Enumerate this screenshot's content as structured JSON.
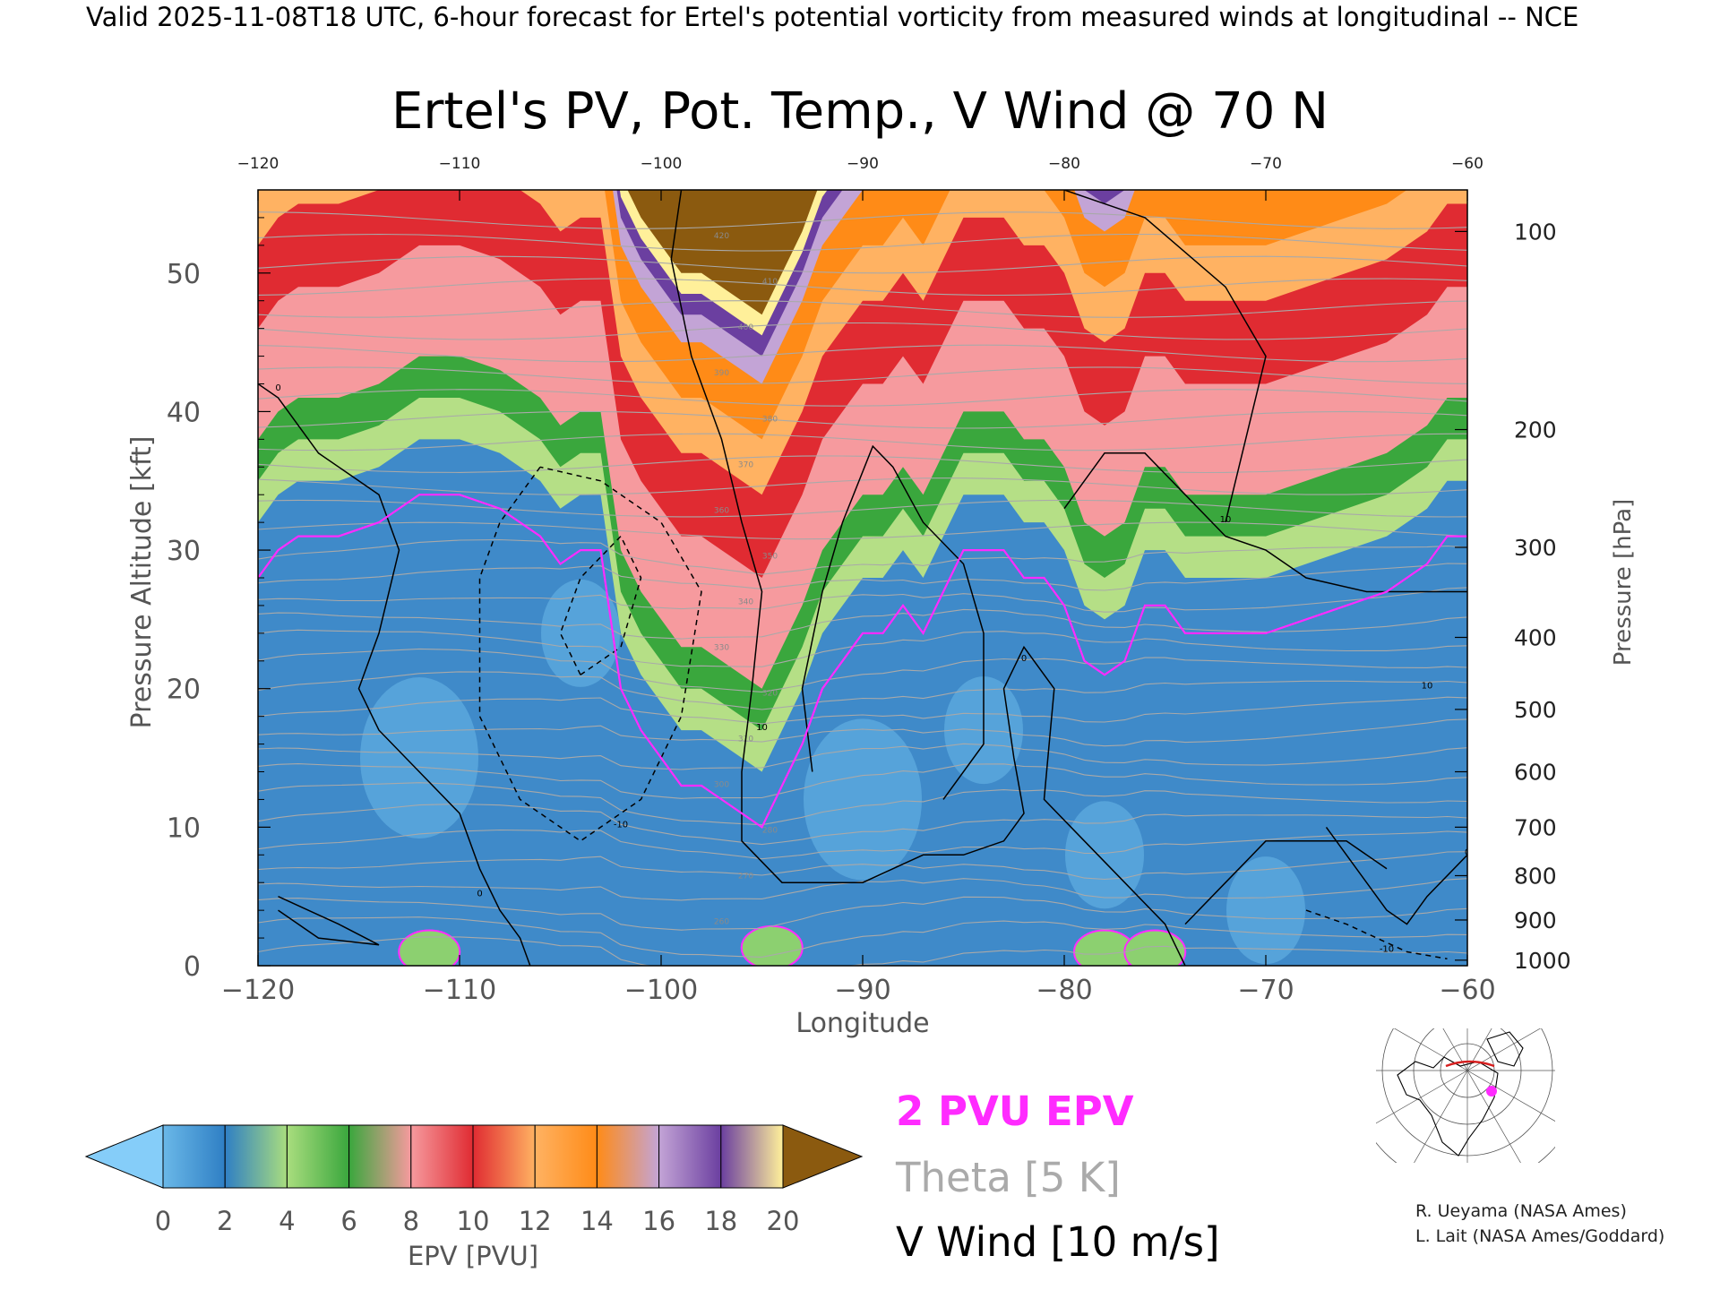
{
  "header": {
    "valid_line": "Valid 2025-11-08T18 UTC, 6-hour forecast for Ertel's potential vorticity from measured winds at longitudinal -- NCE"
  },
  "chart_data": {
    "type": "heatmap",
    "title": "Ertel's PV, Pot. Temp., V Wind @ 70 N",
    "xlabel": "Longitude",
    "ylabel": "Pressure Altitude [kft]",
    "ylabel_right": "Pressure [hPa]",
    "x_range": [
      -120,
      -60
    ],
    "y_range": [
      0,
      56
    ],
    "x_ticks": [
      -120,
      -110,
      -100,
      -90,
      -80,
      -70,
      -60
    ],
    "x_tick_labels": [
      "−120",
      "−110",
      "−100",
      "−90",
      "−80",
      "−70",
      "−60"
    ],
    "y_ticks": [
      0,
      10,
      20,
      30,
      40,
      50
    ],
    "pressure_ticks": [
      {
        "label": "100",
        "kft": 53.0
      },
      {
        "label": "200",
        "kft": 38.7
      },
      {
        "label": "300",
        "kft": 30.2
      },
      {
        "label": "400",
        "kft": 23.7
      },
      {
        "label": "500",
        "kft": 18.5
      },
      {
        "label": "600",
        "kft": 14.0
      },
      {
        "label": "700",
        "kft": 10.0
      },
      {
        "label": "800",
        "kft": 6.5
      },
      {
        "label": "900",
        "kft": 3.3
      },
      {
        "label": "1000",
        "kft": 0.4
      }
    ],
    "legend": {
      "colorbar_label": "EPV [PVU]",
      "colorbar_ticks": [
        "0",
        "2",
        "4",
        "6",
        "8",
        "10",
        "12",
        "14",
        "16",
        "18",
        "20"
      ],
      "colorbar_colors": [
        "#6ab8e8",
        "#2f7fc4",
        "#a9dd7e",
        "#3aa73d",
        "#f69a9e",
        "#e02b32",
        "#ffb262",
        "#ff8b17",
        "#c3a4d6",
        "#6b3fa0",
        "#fff09a",
        "#8b5a0f"
      ],
      "under_color": "#85cdf9",
      "over_color": "#8b5a0f",
      "pv2_label": "2 PVU EPV",
      "theta_label": "Theta [5 K]",
      "wind_label": "V Wind [10 m/s]"
    },
    "colors": {
      "pv2": "#ff2bff",
      "theta": "#a9a9a9",
      "wind": "#000000"
    },
    "series": [
      {
        "name": "2 PVU EPV",
        "x": [
          -120,
          -119,
          -118,
          -116,
          -114,
          -112,
          -110,
          -108,
          -106,
          -105,
          -104,
          -103,
          -102,
          -101,
          -100,
          -99,
          -98,
          -97,
          -96,
          -95,
          -94,
          -93,
          -92,
          -91,
          -90,
          -89,
          -88,
          -87,
          -86,
          -85,
          -84,
          -83,
          -82,
          -81,
          -80,
          -79,
          -78,
          -77,
          -76,
          -75,
          -74,
          -73,
          -72,
          -70,
          -68,
          -66,
          -64,
          -62,
          -61,
          -60
        ],
        "y": [
          28,
          30,
          31,
          31,
          32,
          34,
          34,
          33,
          31,
          29,
          30,
          30,
          20,
          17,
          15,
          13,
          13,
          12,
          11,
          10,
          13,
          16,
          20,
          22,
          24,
          24,
          26,
          24,
          27,
          30,
          30,
          30,
          28,
          28,
          26,
          22,
          21,
          22,
          26,
          26,
          24,
          24,
          24,
          24,
          25,
          26,
          27,
          29,
          31,
          31
        ]
      },
      {
        "name": "V Wind",
        "contour_labels": [
          "0",
          "10",
          "-10"
        ],
        "levels": [
          -10,
          0,
          10
        ]
      },
      {
        "name": "Theta",
        "contour_labels": [
          "260",
          "270",
          "280",
          "300",
          "310",
          "320",
          "330",
          "340",
          "350",
          "360",
          "370",
          "380",
          "390",
          "400",
          "410",
          "420"
        ]
      }
    ],
    "grid": false
  },
  "inset_map": {
    "marker_color": "#ff2bff",
    "section_color": "#d61f1f"
  },
  "credits": {
    "line1": "R. Ueyama (NASA Ames)",
    "line2": "L. Lait (NASA Ames/Goddard)"
  }
}
